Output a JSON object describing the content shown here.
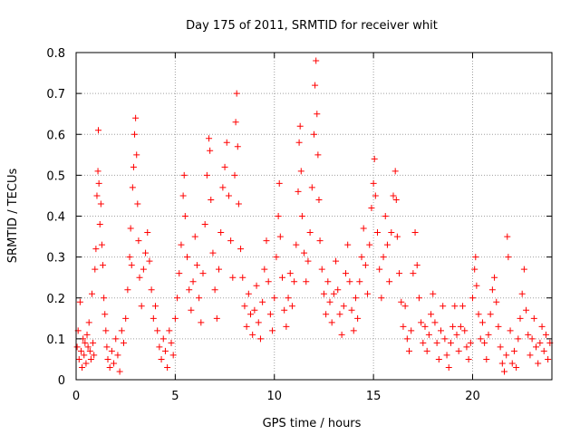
{
  "chart_data": {
    "type": "scatter",
    "title": "Day 175 of 2011, SRMTID for receiver whit",
    "xlabel": "GPS time / hours",
    "ylabel": "SRMTID / TECUs",
    "xlim": [
      0,
      24
    ],
    "ylim": [
      0,
      0.8
    ],
    "xticks": [
      0,
      5,
      10,
      15,
      20
    ],
    "xtick_labels": [
      "0",
      "5",
      "10",
      "15",
      "20"
    ],
    "yticks": [
      0,
      0.1,
      0.2,
      0.3,
      0.4,
      0.5,
      0.6,
      0.7,
      0.8
    ],
    "ytick_labels": [
      "0",
      "0.1",
      "0.2",
      "0.3",
      "0.4",
      "0.5",
      "0.6",
      "0.7",
      "0.8"
    ],
    "grid": true,
    "marker": "plus",
    "color": "#ff0000",
    "series": [
      {
        "name": "SRMTID",
        "points": [
          [
            0.05,
            0.08
          ],
          [
            0.1,
            0.12
          ],
          [
            0.15,
            0.05
          ],
          [
            0.2,
            0.19
          ],
          [
            0.25,
            0.07
          ],
          [
            0.3,
            0.03
          ],
          [
            0.35,
            0.1
          ],
          [
            0.4,
            0.06
          ],
          [
            0.45,
            0.09
          ],
          [
            0.5,
            0.04
          ],
          [
            0.55,
            0.11
          ],
          [
            0.6,
            0.08
          ],
          [
            0.65,
            0.14
          ],
          [
            0.7,
            0.07
          ],
          [
            0.75,
            0.05
          ],
          [
            0.8,
            0.21
          ],
          [
            0.85,
            0.09
          ],
          [
            0.9,
            0.06
          ],
          [
            0.95,
            0.27
          ],
          [
            1.0,
            0.32
          ],
          [
            1.05,
            0.45
          ],
          [
            1.1,
            0.51
          ],
          [
            1.12,
            0.61
          ],
          [
            1.15,
            0.48
          ],
          [
            1.2,
            0.38
          ],
          [
            1.25,
            0.43
          ],
          [
            1.3,
            0.33
          ],
          [
            1.35,
            0.28
          ],
          [
            1.4,
            0.2
          ],
          [
            1.45,
            0.16
          ],
          [
            1.5,
            0.12
          ],
          [
            1.55,
            0.08
          ],
          [
            1.6,
            0.05
          ],
          [
            1.7,
            0.03
          ],
          [
            1.8,
            0.07
          ],
          [
            1.9,
            0.04
          ],
          [
            2.0,
            0.1
          ],
          [
            2.1,
            0.06
          ],
          [
            2.2,
            0.02
          ],
          [
            2.3,
            0.12
          ],
          [
            2.4,
            0.09
          ],
          [
            2.5,
            0.15
          ],
          [
            2.6,
            0.22
          ],
          [
            2.7,
            0.3
          ],
          [
            2.75,
            0.37
          ],
          [
            2.8,
            0.28
          ],
          [
            2.85,
            0.47
          ],
          [
            2.9,
            0.52
          ],
          [
            2.95,
            0.6
          ],
          [
            3.0,
            0.64
          ],
          [
            3.05,
            0.55
          ],
          [
            3.1,
            0.43
          ],
          [
            3.15,
            0.34
          ],
          [
            3.2,
            0.25
          ],
          [
            3.3,
            0.18
          ],
          [
            3.4,
            0.27
          ],
          [
            3.5,
            0.31
          ],
          [
            3.6,
            0.36
          ],
          [
            3.7,
            0.29
          ],
          [
            3.8,
            0.22
          ],
          [
            3.9,
            0.15
          ],
          [
            4.0,
            0.18
          ],
          [
            4.1,
            0.12
          ],
          [
            4.2,
            0.08
          ],
          [
            4.3,
            0.05
          ],
          [
            4.4,
            0.1
          ],
          [
            4.5,
            0.07
          ],
          [
            4.6,
            0.03
          ],
          [
            4.7,
            0.12
          ],
          [
            4.8,
            0.09
          ],
          [
            4.9,
            0.06
          ],
          [
            5.0,
            0.15
          ],
          [
            5.1,
            0.2
          ],
          [
            5.2,
            0.26
          ],
          [
            5.3,
            0.33
          ],
          [
            5.4,
            0.45
          ],
          [
            5.45,
            0.5
          ],
          [
            5.5,
            0.4
          ],
          [
            5.6,
            0.3
          ],
          [
            5.7,
            0.22
          ],
          [
            5.8,
            0.17
          ],
          [
            5.9,
            0.24
          ],
          [
            6.0,
            0.35
          ],
          [
            6.1,
            0.28
          ],
          [
            6.2,
            0.2
          ],
          [
            6.3,
            0.14
          ],
          [
            6.4,
            0.26
          ],
          [
            6.5,
            0.38
          ],
          [
            6.6,
            0.5
          ],
          [
            6.7,
            0.59
          ],
          [
            6.75,
            0.56
          ],
          [
            6.8,
            0.44
          ],
          [
            6.9,
            0.31
          ],
          [
            7.0,
            0.22
          ],
          [
            7.1,
            0.15
          ],
          [
            7.2,
            0.27
          ],
          [
            7.3,
            0.36
          ],
          [
            7.4,
            0.47
          ],
          [
            7.5,
            0.52
          ],
          [
            7.6,
            0.58
          ],
          [
            7.7,
            0.45
          ],
          [
            7.8,
            0.34
          ],
          [
            7.9,
            0.25
          ],
          [
            8.0,
            0.5
          ],
          [
            8.05,
            0.63
          ],
          [
            8.1,
            0.7
          ],
          [
            8.15,
            0.57
          ],
          [
            8.2,
            0.43
          ],
          [
            8.3,
            0.32
          ],
          [
            8.4,
            0.25
          ],
          [
            8.5,
            0.18
          ],
          [
            8.6,
            0.13
          ],
          [
            8.7,
            0.21
          ],
          [
            8.8,
            0.16
          ],
          [
            8.9,
            0.11
          ],
          [
            9.0,
            0.17
          ],
          [
            9.1,
            0.23
          ],
          [
            9.2,
            0.14
          ],
          [
            9.3,
            0.1
          ],
          [
            9.4,
            0.19
          ],
          [
            9.5,
            0.27
          ],
          [
            9.6,
            0.34
          ],
          [
            9.7,
            0.24
          ],
          [
            9.8,
            0.16
          ],
          [
            9.9,
            0.12
          ],
          [
            10.0,
            0.2
          ],
          [
            10.1,
            0.3
          ],
          [
            10.2,
            0.4
          ],
          [
            10.25,
            0.48
          ],
          [
            10.3,
            0.35
          ],
          [
            10.4,
            0.25
          ],
          [
            10.5,
            0.17
          ],
          [
            10.6,
            0.13
          ],
          [
            10.7,
            0.2
          ],
          [
            10.8,
            0.26
          ],
          [
            10.9,
            0.18
          ],
          [
            11.0,
            0.24
          ],
          [
            11.1,
            0.33
          ],
          [
            11.2,
            0.46
          ],
          [
            11.25,
            0.58
          ],
          [
            11.3,
            0.62
          ],
          [
            11.35,
            0.51
          ],
          [
            11.4,
            0.4
          ],
          [
            11.5,
            0.31
          ],
          [
            11.6,
            0.24
          ],
          [
            11.7,
            0.29
          ],
          [
            11.8,
            0.36
          ],
          [
            11.9,
            0.47
          ],
          [
            12.0,
            0.6
          ],
          [
            12.05,
            0.72
          ],
          [
            12.1,
            0.78
          ],
          [
            12.15,
            0.65
          ],
          [
            12.2,
            0.55
          ],
          [
            12.25,
            0.44
          ],
          [
            12.3,
            0.34
          ],
          [
            12.4,
            0.27
          ],
          [
            12.5,
            0.21
          ],
          [
            12.6,
            0.16
          ],
          [
            12.7,
            0.24
          ],
          [
            12.8,
            0.19
          ],
          [
            12.9,
            0.14
          ],
          [
            13.0,
            0.21
          ],
          [
            13.1,
            0.29
          ],
          [
            13.2,
            0.22
          ],
          [
            13.3,
            0.16
          ],
          [
            13.4,
            0.11
          ],
          [
            13.5,
            0.18
          ],
          [
            13.6,
            0.26
          ],
          [
            13.7,
            0.33
          ],
          [
            13.8,
            0.24
          ],
          [
            13.9,
            0.17
          ],
          [
            14.0,
            0.12
          ],
          [
            14.1,
            0.2
          ],
          [
            14.2,
            0.15
          ],
          [
            14.3,
            0.24
          ],
          [
            14.4,
            0.3
          ],
          [
            14.5,
            0.37
          ],
          [
            14.6,
            0.28
          ],
          [
            14.7,
            0.21
          ],
          [
            14.8,
            0.33
          ],
          [
            14.9,
            0.42
          ],
          [
            15.0,
            0.48
          ],
          [
            15.05,
            0.54
          ],
          [
            15.1,
            0.45
          ],
          [
            15.2,
            0.36
          ],
          [
            15.3,
            0.27
          ],
          [
            15.4,
            0.2
          ],
          [
            15.5,
            0.3
          ],
          [
            15.6,
            0.4
          ],
          [
            15.7,
            0.33
          ],
          [
            15.8,
            0.24
          ],
          [
            15.9,
            0.36
          ],
          [
            16.0,
            0.45
          ],
          [
            16.1,
            0.51
          ],
          [
            16.15,
            0.44
          ],
          [
            16.2,
            0.35
          ],
          [
            16.3,
            0.26
          ],
          [
            16.4,
            0.19
          ],
          [
            16.5,
            0.13
          ],
          [
            16.6,
            0.18
          ],
          [
            16.7,
            0.1
          ],
          [
            16.8,
            0.07
          ],
          [
            16.9,
            0.12
          ],
          [
            17.0,
            0.26
          ],
          [
            17.1,
            0.36
          ],
          [
            17.2,
            0.28
          ],
          [
            17.3,
            0.2
          ],
          [
            17.4,
            0.14
          ],
          [
            17.5,
            0.09
          ],
          [
            17.6,
            0.13
          ],
          [
            17.7,
            0.07
          ],
          [
            17.8,
            0.11
          ],
          [
            17.9,
            0.16
          ],
          [
            18.0,
            0.21
          ],
          [
            18.1,
            0.14
          ],
          [
            18.2,
            0.09
          ],
          [
            18.3,
            0.05
          ],
          [
            18.4,
            0.12
          ],
          [
            18.5,
            0.18
          ],
          [
            18.6,
            0.1
          ],
          [
            18.7,
            0.06
          ],
          [
            18.8,
            0.03
          ],
          [
            18.9,
            0.09
          ],
          [
            19.0,
            0.13
          ],
          [
            19.1,
            0.18
          ],
          [
            19.2,
            0.11
          ],
          [
            19.3,
            0.07
          ],
          [
            19.4,
            0.13
          ],
          [
            19.5,
            0.18
          ],
          [
            19.6,
            0.12
          ],
          [
            19.7,
            0.08
          ],
          [
            19.8,
            0.05
          ],
          [
            19.9,
            0.09
          ],
          [
            20.0,
            0.2
          ],
          [
            20.1,
            0.27
          ],
          [
            20.15,
            0.3
          ],
          [
            20.2,
            0.23
          ],
          [
            20.3,
            0.16
          ],
          [
            20.4,
            0.1
          ],
          [
            20.5,
            0.14
          ],
          [
            20.6,
            0.09
          ],
          [
            20.7,
            0.05
          ],
          [
            20.8,
            0.11
          ],
          [
            20.9,
            0.16
          ],
          [
            21.0,
            0.22
          ],
          [
            21.1,
            0.25
          ],
          [
            21.2,
            0.19
          ],
          [
            21.3,
            0.13
          ],
          [
            21.4,
            0.08
          ],
          [
            21.5,
            0.04
          ],
          [
            21.6,
            0.02
          ],
          [
            21.7,
            0.06
          ],
          [
            21.75,
            0.35
          ],
          [
            21.8,
            0.3
          ],
          [
            21.9,
            0.12
          ],
          [
            22.0,
            0.04
          ],
          [
            22.1,
            0.07
          ],
          [
            22.2,
            0.03
          ],
          [
            22.3,
            0.1
          ],
          [
            22.4,
            0.15
          ],
          [
            22.5,
            0.21
          ],
          [
            22.6,
            0.27
          ],
          [
            22.7,
            0.17
          ],
          [
            22.8,
            0.11
          ],
          [
            22.9,
            0.06
          ],
          [
            23.0,
            0.1
          ],
          [
            23.1,
            0.15
          ],
          [
            23.2,
            0.08
          ],
          [
            23.3,
            0.04
          ],
          [
            23.4,
            0.09
          ],
          [
            23.5,
            0.13
          ],
          [
            23.6,
            0.07
          ],
          [
            23.7,
            0.11
          ],
          [
            23.8,
            0.05
          ],
          [
            23.9,
            0.09
          ]
        ]
      }
    ]
  }
}
